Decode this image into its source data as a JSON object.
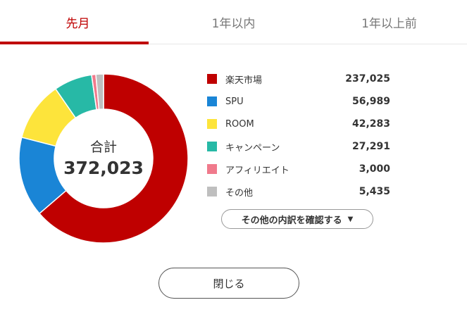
{
  "tabs": [
    {
      "label": "先月",
      "active": true
    },
    {
      "label": "1年以内",
      "active": false
    },
    {
      "label": "1年以上前",
      "active": false
    }
  ],
  "total": {
    "label": "合計",
    "value": "372,023"
  },
  "chart_data": {
    "type": "pie",
    "style": "donut",
    "total": 372023,
    "categories": [
      "楽天市場",
      "SPU",
      "ROOM",
      "キャンペーン",
      "アフィリエイト",
      "その他"
    ],
    "values": [
      237025,
      56989,
      42283,
      27291,
      3000,
      5435
    ],
    "colors": [
      "#bf0000",
      "#1a85d6",
      "#fde43b",
      "#27b9a6",
      "#f07a8c",
      "#bfbfbf"
    ]
  },
  "legend": [
    {
      "label": "楽天市場",
      "value": "237,025",
      "color": "#bf0000"
    },
    {
      "label": "SPU",
      "value": "56,989",
      "color": "#1a85d6"
    },
    {
      "label": "ROOM",
      "value": "42,283",
      "color": "#fde43b"
    },
    {
      "label": "キャンペーン",
      "value": "27,291",
      "color": "#27b9a6"
    },
    {
      "label": "アフィリエイト",
      "value": "3,000",
      "color": "#f07a8c"
    },
    {
      "label": "その他",
      "value": "5,435",
      "color": "#bfbfbf"
    }
  ],
  "details_button": {
    "label": "その他の内訳を確認する",
    "caret": "▼"
  },
  "close_button": {
    "label": "閉じる"
  }
}
